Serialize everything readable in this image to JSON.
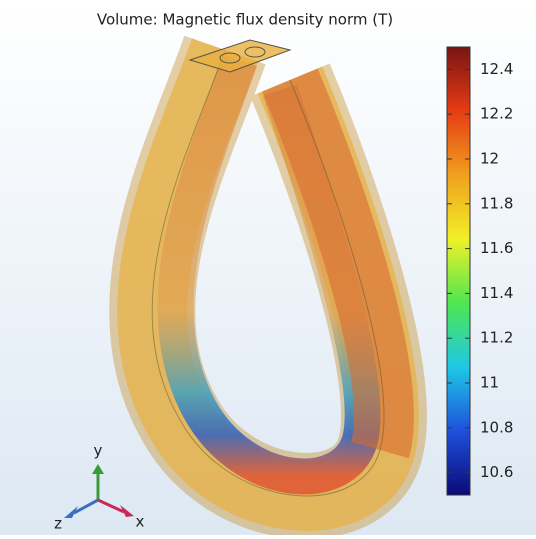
{
  "title": "Volume: Magnetic flux density norm (T)",
  "colorbar": {
    "range": [
      10.5,
      12.5
    ],
    "ticks": [
      10.6,
      10.8,
      11,
      11.2,
      11.4,
      11.6,
      11.8,
      12,
      12.2,
      12.4
    ],
    "colors": [
      "#0a0a78",
      "#1e50dc",
      "#1ec8e6",
      "#50e650",
      "#f0f028",
      "#f0a01e",
      "#e63c14",
      "#781414"
    ]
  },
  "triad": {
    "x": "x",
    "y": "y",
    "z": "z"
  }
}
